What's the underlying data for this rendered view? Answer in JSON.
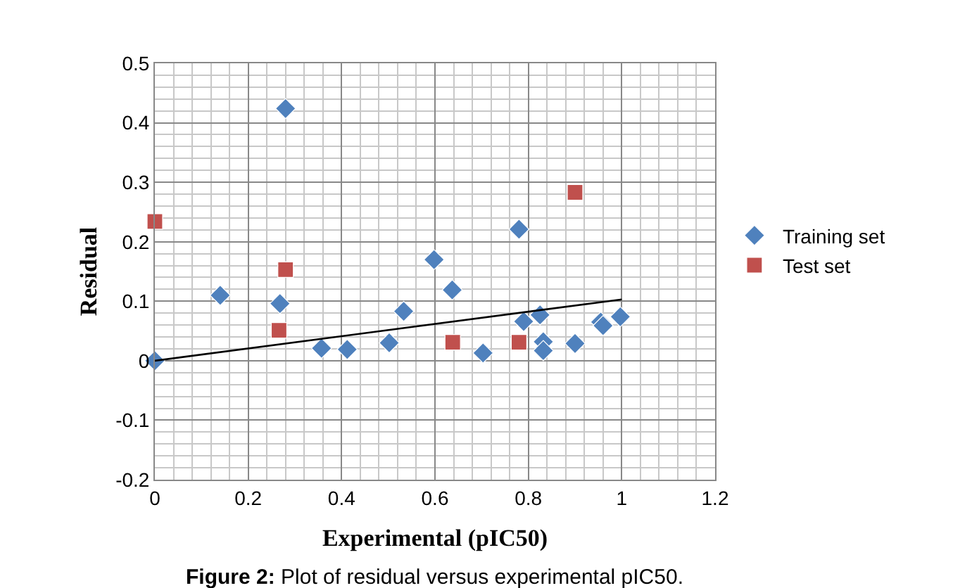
{
  "chart_data": {
    "type": "scatter",
    "xlabel": "Experimental (pIC50)",
    "ylabel": "Residual",
    "xlim": [
      0,
      1.2
    ],
    "xticks": [
      0,
      0.2,
      0.4,
      0.6,
      0.8,
      1,
      1.2
    ],
    "ylim": [
      -0.2,
      0.5
    ],
    "yticks": [
      -0.2,
      -0.1,
      0,
      0.1,
      0.2,
      0.3,
      0.4,
      0.5
    ],
    "grid": true,
    "legend": "right",
    "annotations": [
      "Figure 2: Plot of residual versus experimental pIC50."
    ],
    "series": [
      {
        "name": "Training set",
        "color": "#4f81bd",
        "marker": "diamond",
        "x": [
          0,
          0.14,
          0.268,
          0.28,
          0.357,
          0.412,
          0.502,
          0.533,
          0.598,
          0.637,
          0.703,
          0.78,
          0.79,
          0.825,
          0.832,
          0.832,
          0.9,
          0.955,
          0.96,
          0.997
        ],
        "values": [
          0,
          0.11,
          0.096,
          0.424,
          0.021,
          0.019,
          0.03,
          0.083,
          0.17,
          0.119,
          0.013,
          0.221,
          0.066,
          0.077,
          0.032,
          0.017,
          0.029,
          0.065,
          0.059,
          0.074
        ]
      },
      {
        "name": "Test set",
        "color": "#c0504d",
        "marker": "square",
        "x": [
          0,
          0.266,
          0.28,
          0.638,
          0.78,
          0.9
        ],
        "values": [
          0.234,
          0.051,
          0.153,
          0.031,
          0.031,
          0.283
        ]
      },
      {
        "type": "line",
        "color": "#000000",
        "marker": "none",
        "x": [
          0,
          1
        ],
        "values": [
          0,
          0.103
        ]
      }
    ]
  }
}
